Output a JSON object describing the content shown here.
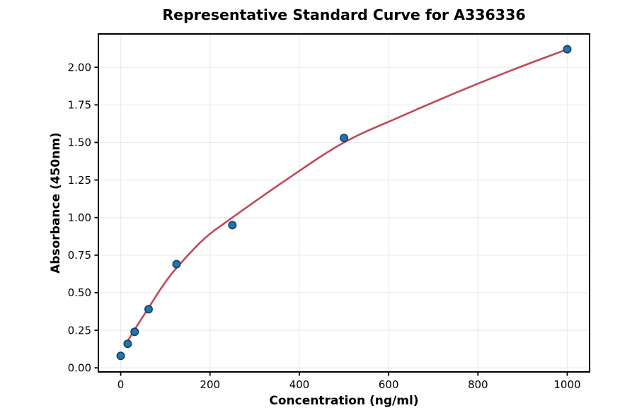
{
  "figure": {
    "background": "#ffffff"
  },
  "chart_data": {
    "type": "scatter",
    "title": "Representative Standard Curve for A336336",
    "xlabel": "Concentration (ng/ml)",
    "ylabel": "Absorbance (450nm)",
    "points": {
      "x": [
        0,
        15.6,
        31.25,
        62.5,
        125,
        250,
        500,
        1000
      ],
      "y": [
        0.08,
        0.16,
        0.24,
        0.39,
        0.69,
        0.95,
        1.53,
        2.12
      ]
    },
    "fit_curve": [
      [
        15,
        0.175
      ],
      [
        31.25,
        0.255
      ],
      [
        62.5,
        0.4
      ],
      [
        94,
        0.545
      ],
      [
        125,
        0.665
      ],
      [
        187.5,
        0.86
      ],
      [
        250,
        1.0
      ],
      [
        375,
        1.26
      ],
      [
        500,
        1.5
      ],
      [
        625,
        1.67
      ],
      [
        750,
        1.83
      ],
      [
        875,
        1.98
      ],
      [
        1000,
        2.12
      ]
    ],
    "xlim": [
      -50,
      1050
    ],
    "ylim": [
      -0.027,
      2.222
    ],
    "xticks": [
      "0",
      "200",
      "400",
      "600",
      "800",
      "1000"
    ],
    "yticks": [
      "0.00",
      "0.25",
      "0.50",
      "0.75",
      "1.00",
      "1.25",
      "1.50",
      "1.75",
      "2.00"
    ],
    "grid": true,
    "legend": "none",
    "colors": {
      "point_fill": "#2374ae",
      "point_edge": "#14425f",
      "line": "#c14a58",
      "grid": "#ebebeb",
      "axis": "#000000",
      "background": "#ffffff"
    }
  }
}
